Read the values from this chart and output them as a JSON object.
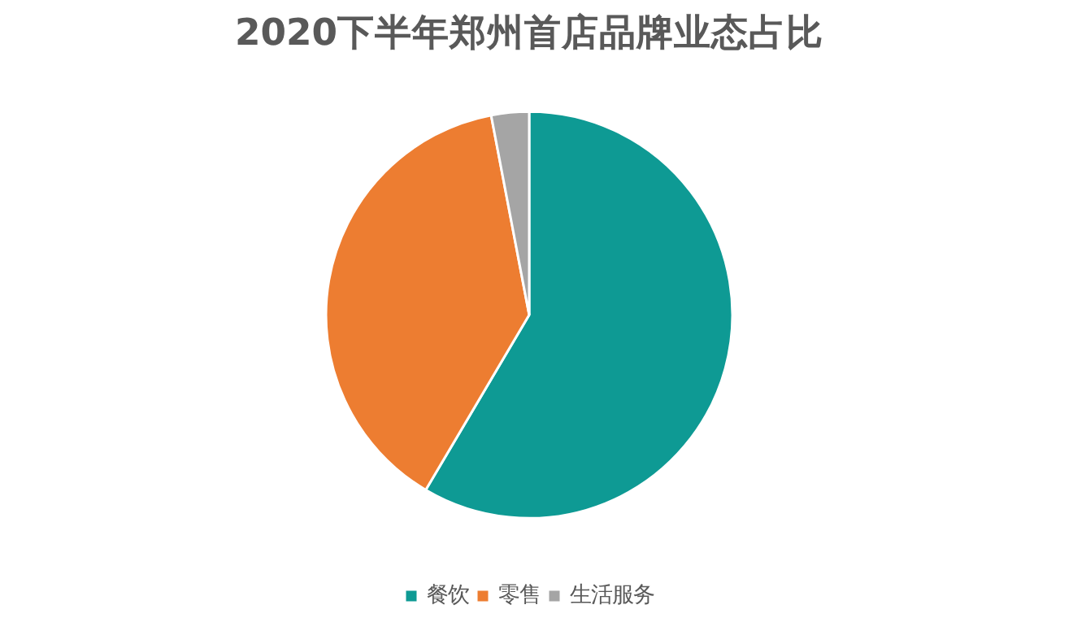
{
  "chart_data": {
    "type": "pie",
    "title": "2020下半年郑州首店品牌业态占比",
    "categories": [
      "餐饮",
      "零售",
      "生活服务"
    ],
    "values": [
      58.5,
      38.5,
      3
    ],
    "colors": [
      "#0e9a94",
      "#ed7d31",
      "#a5a5a5"
    ],
    "legend": "bottom"
  }
}
